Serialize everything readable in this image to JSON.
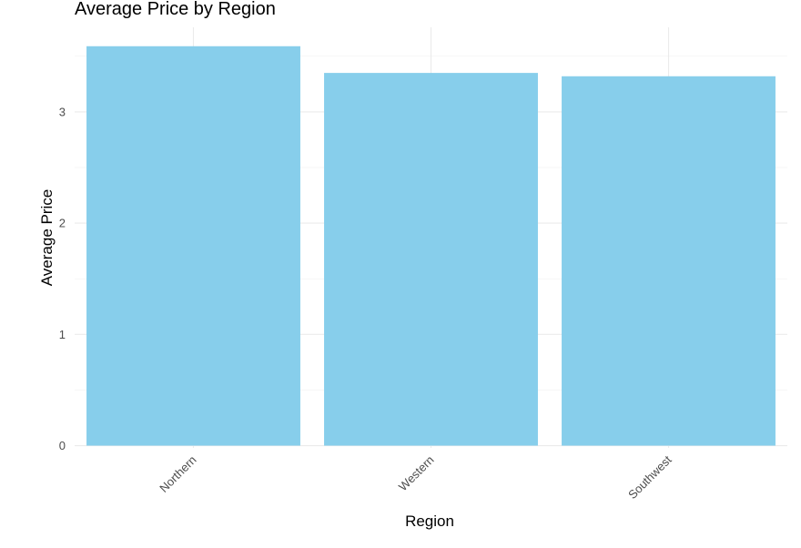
{
  "chart_data": {
    "type": "bar",
    "title": "Average Price by Region",
    "xlabel": "Region",
    "ylabel": "Average Price",
    "categories": [
      "Northern",
      "Western",
      "Southwest"
    ],
    "values": [
      3.59,
      3.35,
      3.32
    ],
    "ylim": [
      -0.02,
      3.76
    ],
    "yticks": [
      0,
      1,
      2,
      3
    ],
    "yticks_minor": [
      0.5,
      1.5,
      2.5,
      3.5
    ],
    "bar_color": "#87CEEB",
    "grid": true,
    "legend": "none"
  }
}
